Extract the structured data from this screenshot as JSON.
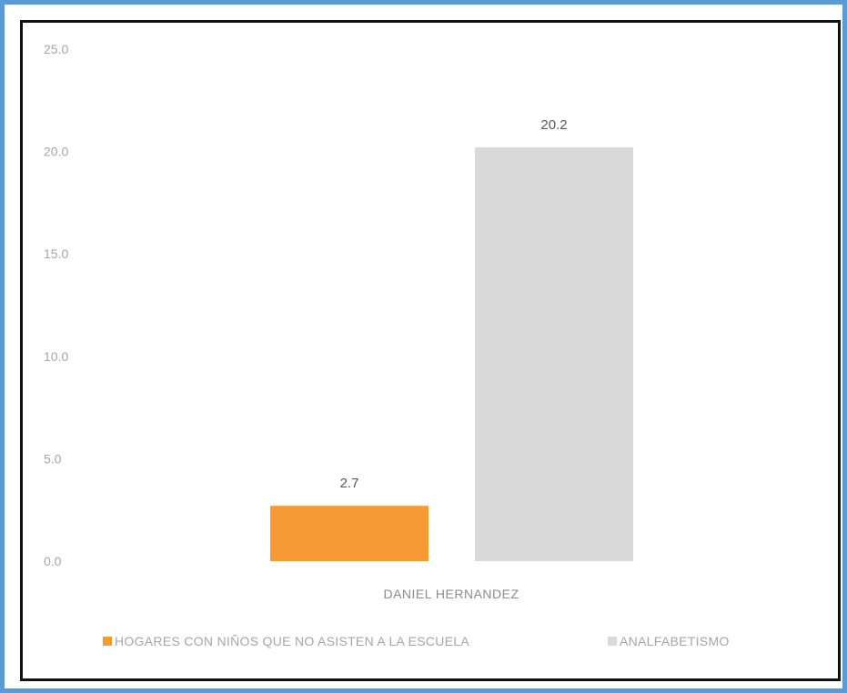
{
  "chart_data": {
    "type": "bar",
    "categories": [
      "DANIEL HERNANDEZ"
    ],
    "series": [
      {
        "name": "HOGARES CON NIÑOS QUE NO ASISTEN A LA ESCUELA",
        "values": [
          2.7
        ],
        "color": "#f79a33"
      },
      {
        "name": "ANALFABETISMO",
        "values": [
          20.2
        ],
        "color": "#d9d9d9"
      }
    ],
    "y_ticks": [
      "0.0",
      "5.0",
      "10.0",
      "15.0",
      "20.0",
      "25.0"
    ],
    "ylim": [
      0,
      25
    ],
    "data_labels": [
      "2.7",
      "20.2"
    ],
    "legend_position": "bottom",
    "grid": false,
    "title": "",
    "xlabel": "",
    "ylabel": ""
  },
  "colors": {
    "frame_border": "#5b9bd5",
    "plot_border": "#111111",
    "tick_text": "#a6a6a6"
  }
}
